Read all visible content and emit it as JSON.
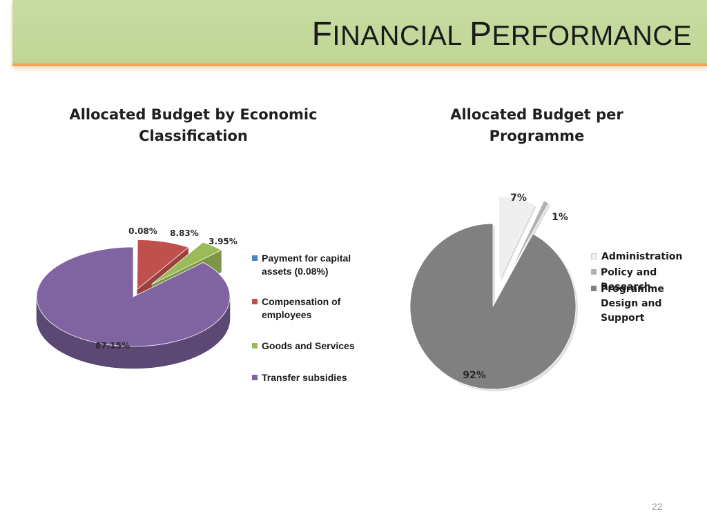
{
  "slide": {
    "title_cap1": "F",
    "title_rest1": "INANCIAL ",
    "title_cap2": "P",
    "title_rest2": "ERFORMANCE",
    "page_number": "22"
  },
  "chart_data": [
    {
      "type": "pie",
      "title": "Allocated Budget by Economic Classification",
      "title_line1": "Allocated Budget by Economic",
      "title_line2": "Classification",
      "labels": [
        "Payment for capital assets (0.08%)",
        "Compensation of employees",
        "Goods and Services",
        "Transfer subsidies"
      ],
      "values": [
        0.08,
        8.83,
        3.95,
        87.15
      ],
      "data_labels": [
        "0.08%",
        "8.83%",
        "3.95%",
        "87.15%"
      ],
      "colors": [
        "#4f81bd",
        "#c0504d",
        "#9bbb59",
        "#8064a2"
      ],
      "legend_position": "right",
      "style": "3d exploded"
    },
    {
      "type": "pie",
      "title": "Allocated Budget per Programme",
      "labels": [
        "Administration",
        "Policy and Research",
        "Programme Design and Support"
      ],
      "values": [
        7,
        1,
        92
      ],
      "data_labels": [
        "7%",
        "1%",
        "92%"
      ],
      "colors": [
        "#eeeeee",
        "#b2b2b2",
        "#808080"
      ],
      "legend_position": "right",
      "style": "exploded"
    }
  ]
}
